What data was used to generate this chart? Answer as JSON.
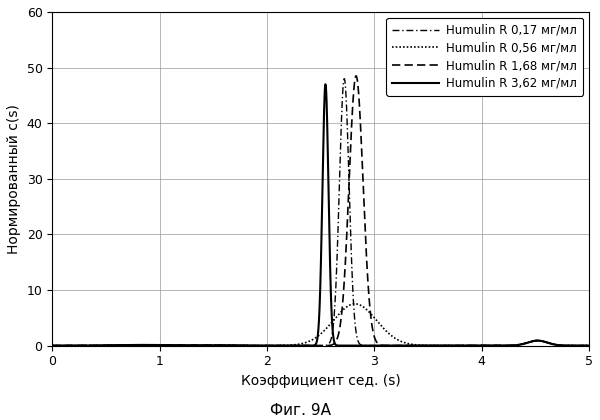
{
  "xlabel": "Коэффициент сед. (s)",
  "ylabel": "Нормированный c(s)",
  "caption": "Фиг. 9А",
  "xlim": [
    0,
    5
  ],
  "ylim": [
    0,
    60
  ],
  "xticks": [
    0,
    1,
    2,
    3,
    4,
    5
  ],
  "yticks": [
    0,
    10,
    20,
    30,
    40,
    50,
    60
  ],
  "background_color": "#ffffff",
  "series": [
    {
      "label": "Humulin R 0,17 мг/мл",
      "linestyle_key": "dashdot",
      "linewidth": 1.0,
      "peaks": [
        {
          "x": 2.72,
          "amp": 48.0,
          "sigma": 0.045
        },
        {
          "x": 4.52,
          "amp": 0.9,
          "sigma": 0.09
        }
      ],
      "baseline_amp": 0.12
    },
    {
      "label": "Humulin R 0,56 мг/мл",
      "linestyle_key": "dotted",
      "linewidth": 1.2,
      "peaks": [
        {
          "x": 2.82,
          "amp": 7.5,
          "sigma": 0.2
        },
        {
          "x": 4.52,
          "amp": 0.9,
          "sigma": 0.09
        }
      ],
      "baseline_amp": 0.12
    },
    {
      "label": "Humulin R 1,68 мг/мл",
      "linestyle_key": "dashed",
      "linewidth": 1.2,
      "peaks": [
        {
          "x": 2.83,
          "amp": 48.5,
          "sigma": 0.065
        },
        {
          "x": 4.52,
          "amp": 0.9,
          "sigma": 0.09
        }
      ],
      "baseline_amp": 0.12
    },
    {
      "label": "Humulin R 3,62 мг/мл",
      "linestyle_key": "solid",
      "linewidth": 1.5,
      "peaks": [
        {
          "x": 2.545,
          "amp": 47.0,
          "sigma": 0.028
        },
        {
          "x": 4.52,
          "amp": 0.9,
          "sigma": 0.09
        }
      ],
      "baseline_amp": 0.12
    }
  ]
}
